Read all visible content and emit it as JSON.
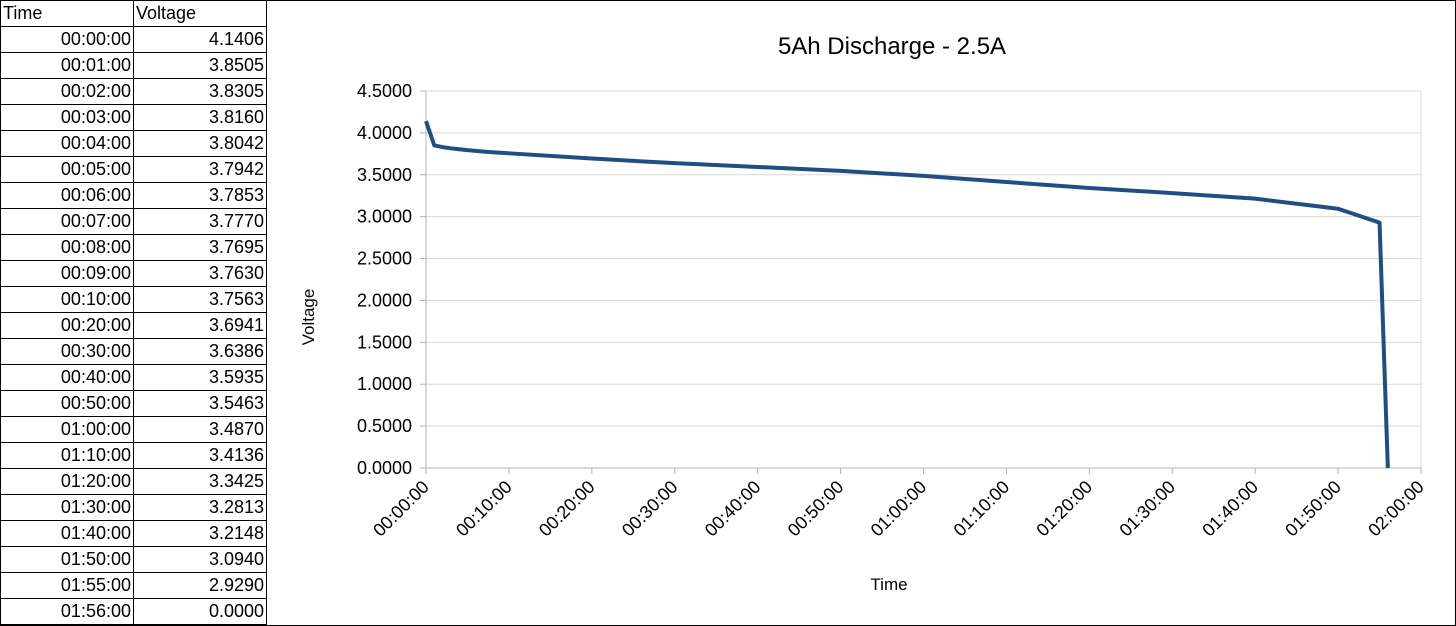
{
  "table": {
    "headers": [
      "Time",
      "Voltage"
    ],
    "rows": [
      [
        "00:00:00",
        "4.1406"
      ],
      [
        "00:01:00",
        "3.8505"
      ],
      [
        "00:02:00",
        "3.8305"
      ],
      [
        "00:03:00",
        "3.8160"
      ],
      [
        "00:04:00",
        "3.8042"
      ],
      [
        "00:05:00",
        "3.7942"
      ],
      [
        "00:06:00",
        "3.7853"
      ],
      [
        "00:07:00",
        "3.7770"
      ],
      [
        "00:08:00",
        "3.7695"
      ],
      [
        "00:09:00",
        "3.7630"
      ],
      [
        "00:10:00",
        "3.7563"
      ],
      [
        "00:20:00",
        "3.6941"
      ],
      [
        "00:30:00",
        "3.6386"
      ],
      [
        "00:40:00",
        "3.5935"
      ],
      [
        "00:50:00",
        "3.5463"
      ],
      [
        "01:00:00",
        "3.4870"
      ],
      [
        "01:10:00",
        "3.4136"
      ],
      [
        "01:20:00",
        "3.3425"
      ],
      [
        "01:30:00",
        "3.2813"
      ],
      [
        "01:40:00",
        "3.2148"
      ],
      [
        "01:50:00",
        "3.0940"
      ],
      [
        "01:55:00",
        "2.9290"
      ],
      [
        "01:56:00",
        "0.0000"
      ]
    ]
  },
  "chart_data": {
    "type": "line",
    "title": "5Ah Discharge - 2.5A",
    "xlabel": "Time",
    "ylabel": "Voltage",
    "x": [
      "00:00:00",
      "00:01:00",
      "00:02:00",
      "00:03:00",
      "00:04:00",
      "00:05:00",
      "00:06:00",
      "00:07:00",
      "00:08:00",
      "00:09:00",
      "00:10:00",
      "00:20:00",
      "00:30:00",
      "00:40:00",
      "00:50:00",
      "01:00:00",
      "01:10:00",
      "01:20:00",
      "01:30:00",
      "01:40:00",
      "01:50:00",
      "01:55:00",
      "01:56:00"
    ],
    "series": [
      {
        "values": [
          4.1406,
          3.8505,
          3.8305,
          3.816,
          3.8042,
          3.7942,
          3.7853,
          3.777,
          3.7695,
          3.763,
          3.7563,
          3.6941,
          3.6386,
          3.5935,
          3.5463,
          3.487,
          3.4136,
          3.3425,
          3.2813,
          3.2148,
          3.094,
          2.929,
          0.0
        ]
      }
    ],
    "xlim": [
      "00:00:00",
      "02:00:00"
    ],
    "ylim": [
      0,
      4.5
    ],
    "x_ticks": [
      "00:00:00",
      "00:10:00",
      "00:20:00",
      "00:30:00",
      "00:40:00",
      "00:50:00",
      "01:00:00",
      "01:10:00",
      "01:20:00",
      "01:30:00",
      "01:40:00",
      "01:50:00",
      "02:00:00"
    ],
    "y_ticks": [
      "4.5000",
      "4.0000",
      "3.5000",
      "3.0000",
      "2.5000",
      "2.0000",
      "1.5000",
      "1.0000",
      "0.5000",
      "0.0000"
    ],
    "grid": "horizontal",
    "colors": {
      "line": "#1f4e84",
      "grid": "#d9d9d9",
      "axis": "#b3b3b3"
    }
  }
}
